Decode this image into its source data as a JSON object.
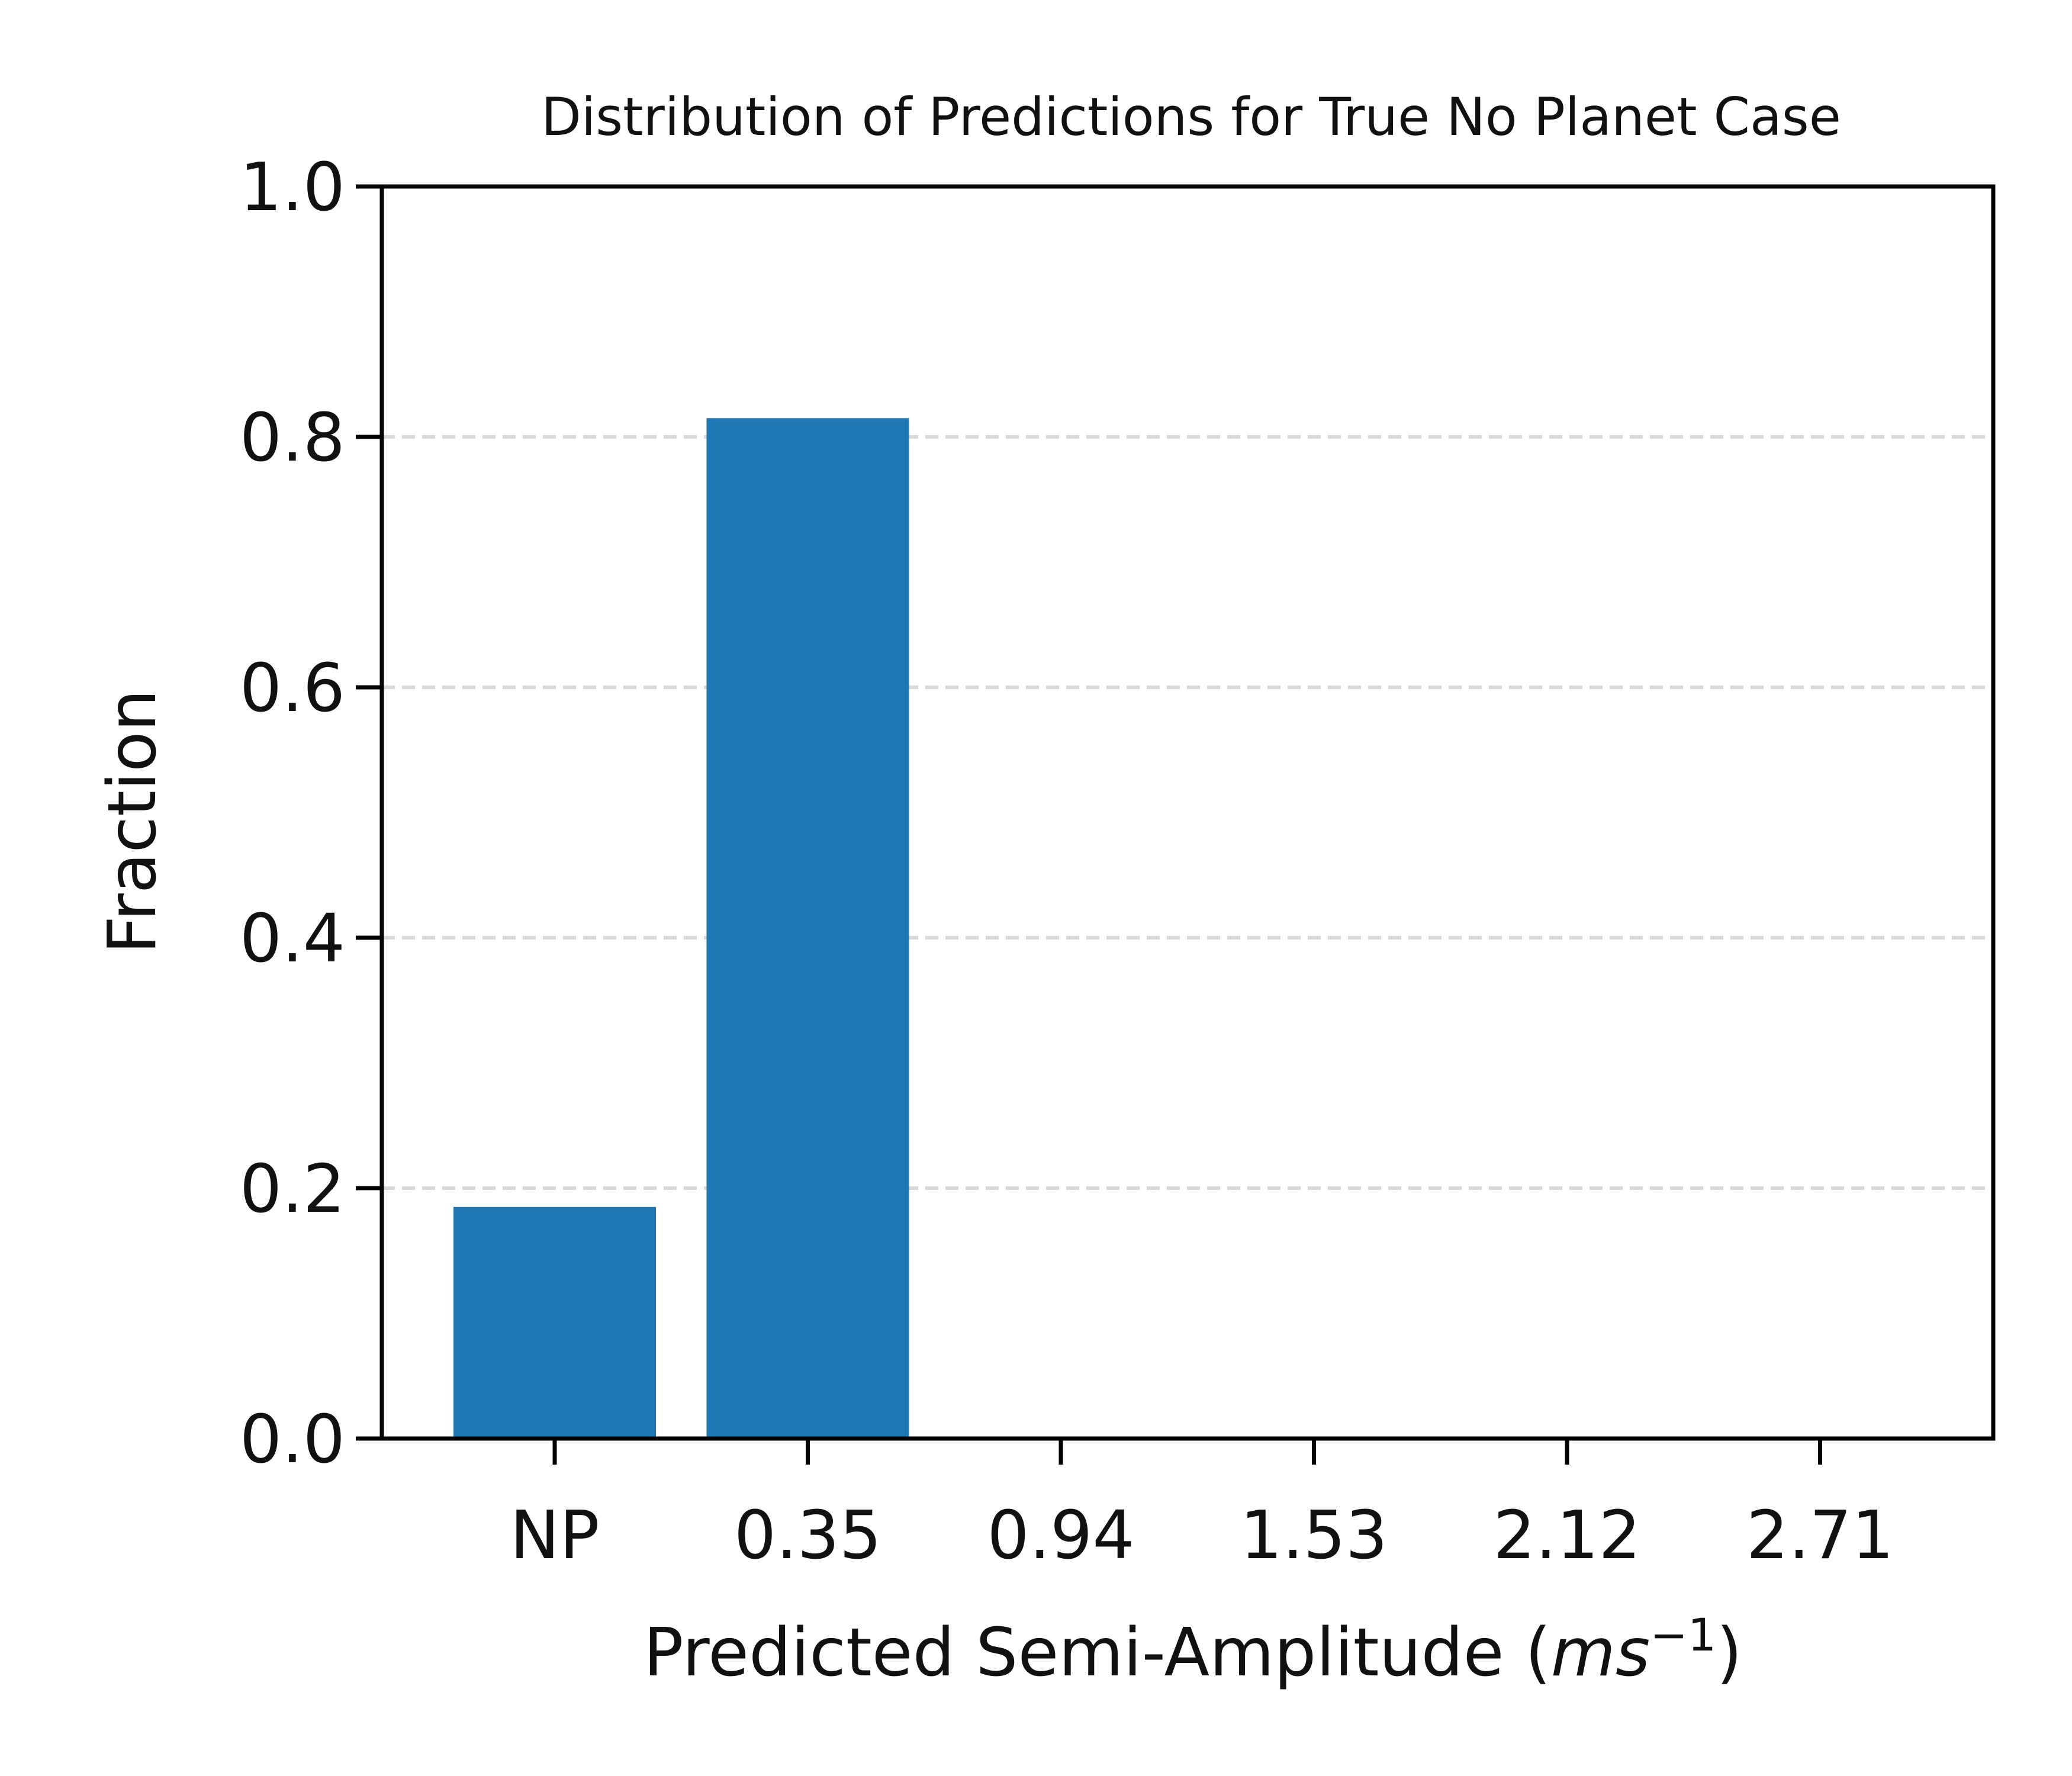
{
  "chart_data": {
    "type": "bar",
    "title": "Distribution of Predictions for True No Planet Case",
    "xlabel_prefix": "Predicted Semi-Amplitude (",
    "xlabel_unit": "ms",
    "xlabel_exponent": "−1",
    "xlabel_suffix": ")",
    "ylabel": "Fraction",
    "categories": [
      "NP",
      "0.35",
      "0.94",
      "1.53",
      "2.12",
      "2.71"
    ],
    "values": [
      0.185,
      0.815,
      0.0,
      0.0,
      0.0,
      0.0
    ],
    "ylim": [
      0.0,
      1.0
    ],
    "yticks": [
      "0.0",
      "0.2",
      "0.4",
      "0.6",
      "0.8",
      "1.0"
    ],
    "grid": "y dashed",
    "colors": {
      "bar": "#1f77b4",
      "grid": "#d9d9d9",
      "axis": "#000000"
    }
  }
}
